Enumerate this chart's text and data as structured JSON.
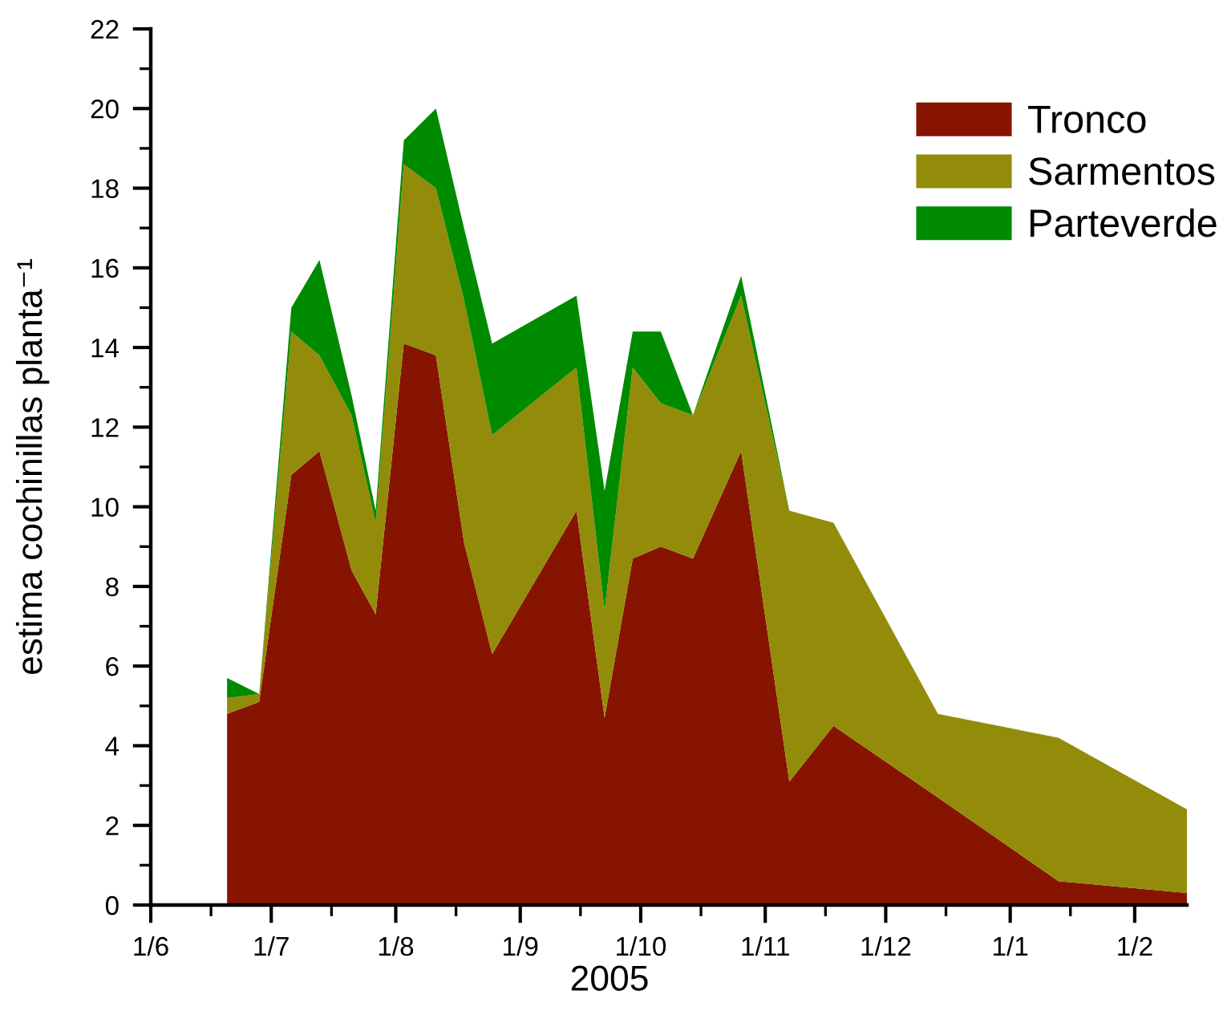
{
  "chart_data": {
    "type": "area",
    "stacked": true,
    "xlabel": "2005",
    "ylabel": "estima cochinillas planta⁻¹",
    "legend": "top right",
    "x": [
      "2005-06-20",
      "2005-06-28",
      "2005-07-06",
      "2005-07-13",
      "2005-07-21",
      "2005-07-27",
      "2005-08-03",
      "2005-08-11",
      "2005-08-18",
      "2005-08-25",
      "2005-09-15",
      "2005-09-22",
      "2005-09-29",
      "2005-10-06",
      "2005-10-14",
      "2005-10-26",
      "2005-11-07",
      "2005-11-18",
      "2005-12-14",
      "2006-01-13",
      "2006-02-14"
    ],
    "xlim": [
      "2005-06-01",
      "2006-02-14"
    ],
    "xticks": [
      {
        "value": "2005-06-01",
        "label": "1/6"
      },
      {
        "value": "2005-06-16",
        "label": null
      },
      {
        "value": "2005-07-01",
        "label": "1/7"
      },
      {
        "value": "2005-07-16",
        "label": null
      },
      {
        "value": "2005-08-01",
        "label": "1/8"
      },
      {
        "value": "2005-08-16",
        "label": null
      },
      {
        "value": "2005-09-01",
        "label": "1/9"
      },
      {
        "value": "2005-09-16",
        "label": null
      },
      {
        "value": "2005-10-01",
        "label": "1/10"
      },
      {
        "value": "2005-10-16",
        "label": null
      },
      {
        "value": "2005-11-01",
        "label": "1/11"
      },
      {
        "value": "2005-11-16",
        "label": null
      },
      {
        "value": "2005-12-01",
        "label": "1/12"
      },
      {
        "value": "2005-12-16",
        "label": null
      },
      {
        "value": "2006-01-01",
        "label": "1/1"
      },
      {
        "value": "2006-01-16",
        "label": null
      },
      {
        "value": "2006-02-01",
        "label": "1/2"
      }
    ],
    "ylim": [
      0,
      22
    ],
    "yticks": [
      0,
      {
        "value": 1,
        "label": null
      },
      2,
      {
        "value": 3,
        "label": null
      },
      4,
      {
        "value": 5,
        "label": null
      },
      6,
      {
        "value": 7,
        "label": null
      },
      8,
      {
        "value": 9,
        "label": null
      },
      10,
      {
        "value": 11,
        "label": null
      },
      12,
      {
        "value": 13,
        "label": null
      },
      14,
      {
        "value": 15,
        "label": null
      },
      16,
      {
        "value": 17,
        "label": null
      },
      18,
      {
        "value": 19,
        "label": null
      },
      20,
      {
        "value": 21,
        "label": null
      },
      22
    ],
    "series": [
      {
        "name": "Tronco",
        "color": "#861400",
        "values": [
          4.8,
          5.1,
          10.8,
          11.4,
          8.4,
          7.3,
          14.1,
          13.8,
          9.1,
          6.3,
          9.9,
          4.7,
          8.7,
          9.0,
          8.7,
          11.4,
          3.1,
          4.5,
          2.7,
          0.6,
          0.3
        ]
      },
      {
        "name": "Sarmentos",
        "color": "#928c0a",
        "values": [
          0.4,
          0.2,
          3.6,
          2.4,
          3.9,
          2.3,
          4.5,
          4.2,
          6.1,
          5.5,
          3.6,
          2.7,
          4.8,
          3.6,
          3.6,
          3.9,
          6.8,
          5.1,
          2.1,
          3.6,
          2.1
        ]
      },
      {
        "name": "Parteverde",
        "color": "#008a00",
        "values": [
          0.5,
          0,
          0.6,
          2.4,
          0.5,
          0.3,
          0.6,
          2.0,
          1.8,
          2.3,
          1.8,
          3.0,
          0.9,
          1.8,
          0,
          0.5,
          0,
          0,
          0,
          0,
          0
        ]
      }
    ]
  }
}
